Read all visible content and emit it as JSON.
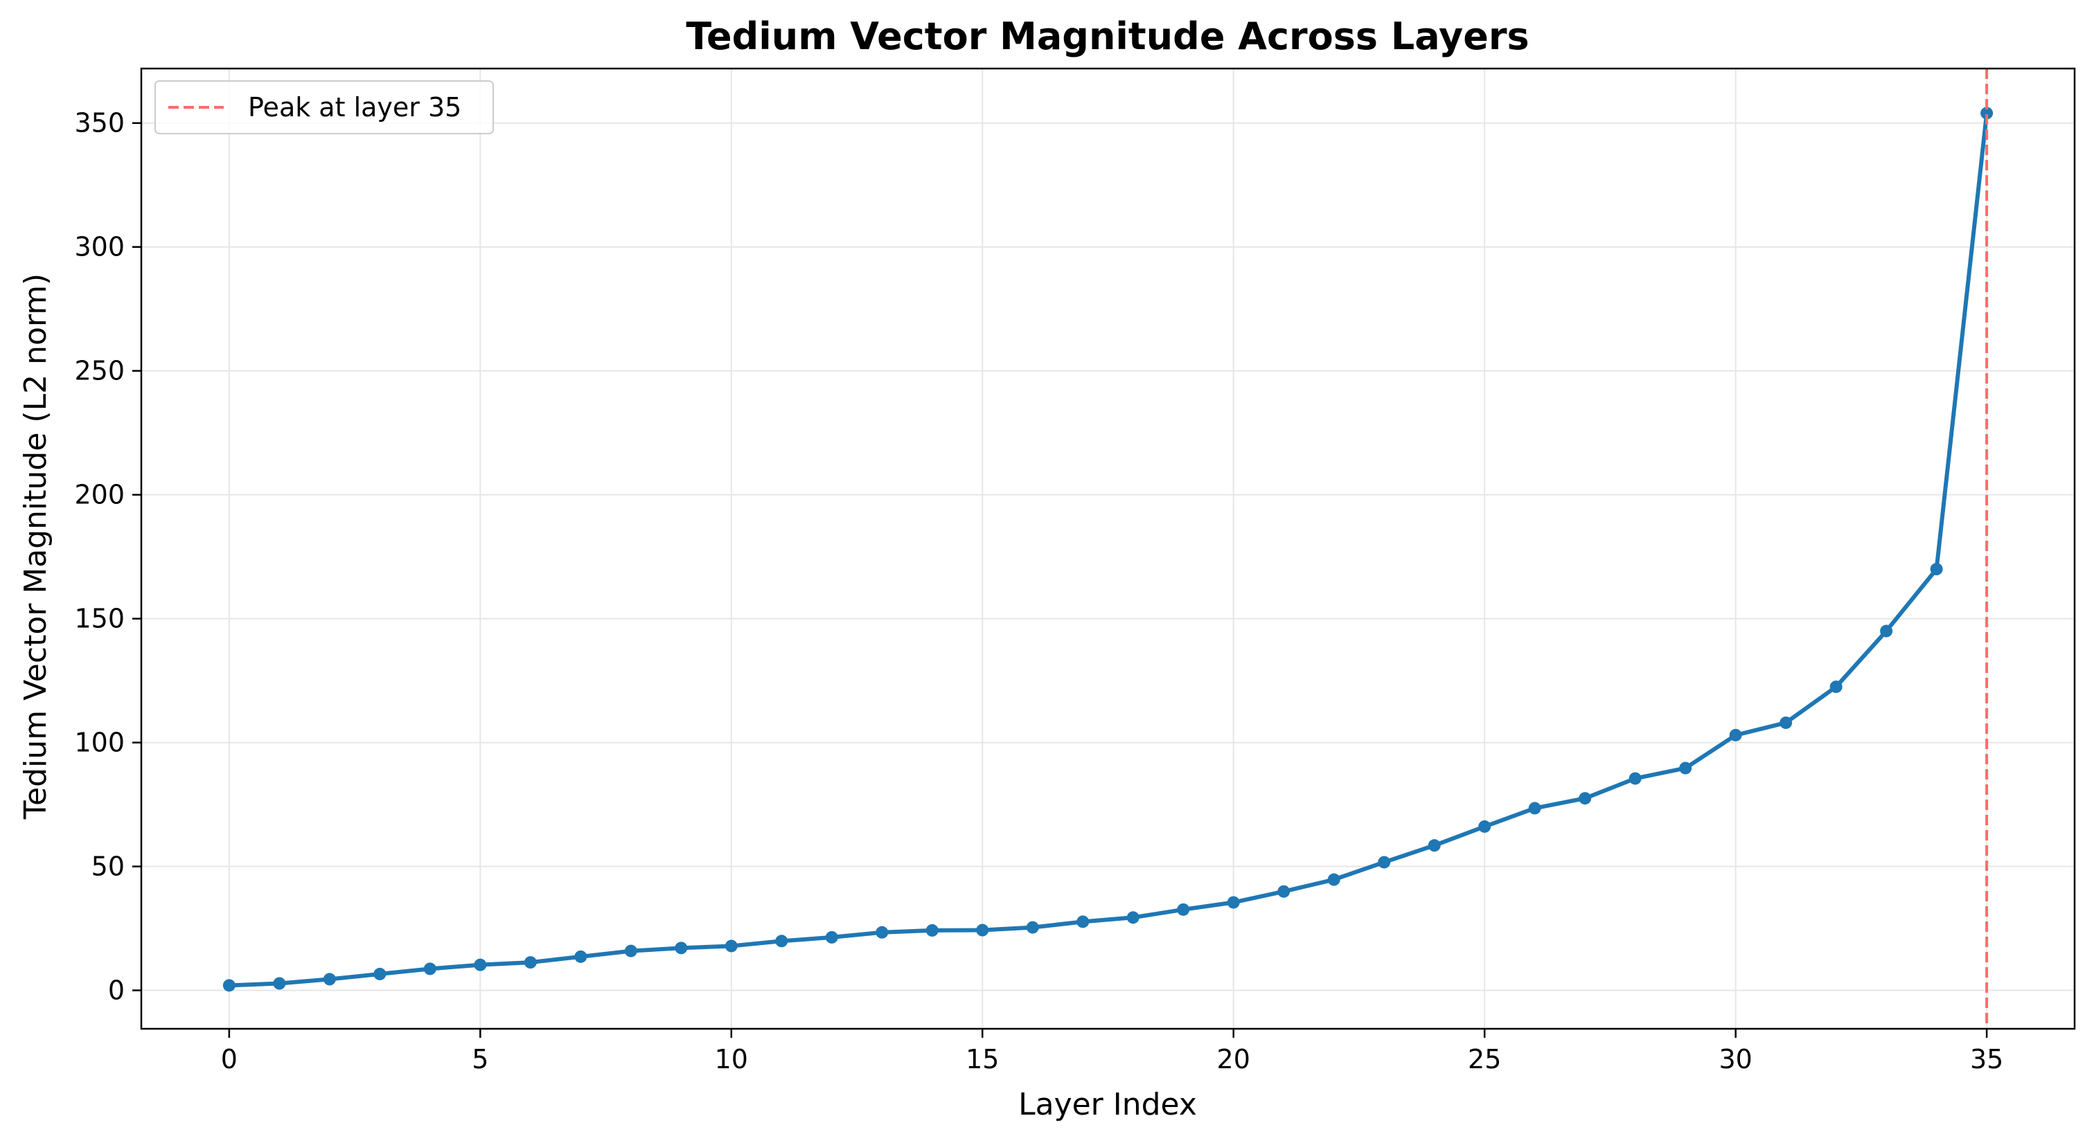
{
  "chart_data": {
    "type": "line",
    "title": "Tedium Vector Magnitude Across Layers",
    "xlabel": "Layer Index",
    "ylabel": "Tedium Vector Magnitude (L2 norm)",
    "xlim": [
      -1.75,
      36.75
    ],
    "ylim": [
      -15.5,
      372
    ],
    "xticks": [
      0,
      5,
      10,
      15,
      20,
      25,
      30,
      35
    ],
    "yticks": [
      0,
      50,
      100,
      150,
      200,
      250,
      300,
      350
    ],
    "grid": true,
    "legend_position": "top-left",
    "series": [
      {
        "color": "#1f77b4",
        "x": [
          0,
          1,
          2,
          3,
          4,
          5,
          6,
          7,
          8,
          9,
          10,
          11,
          12,
          13,
          14,
          15,
          16,
          17,
          18,
          19,
          20,
          21,
          22,
          23,
          24,
          25,
          26,
          27,
          28,
          29,
          30,
          31,
          32,
          33,
          34,
          35
        ],
        "y": [
          2,
          2.8,
          4.5,
          6.6,
          8.7,
          10.3,
          11.3,
          13.6,
          15.9,
          17.1,
          17.9,
          19.9,
          21.4,
          23.4,
          24.2,
          24.3,
          25.4,
          27.7,
          29.4,
          32.6,
          35.5,
          39.9,
          44.7,
          51.7,
          58.5,
          66.1,
          73.5,
          77.5,
          85.5,
          89.7,
          103,
          108,
          122.5,
          145,
          170,
          354
        ]
      }
    ],
    "annotations": [
      {
        "type": "vline",
        "x": 35,
        "label": "Peak at layer 35",
        "color": "#ff6b6b"
      }
    ]
  }
}
